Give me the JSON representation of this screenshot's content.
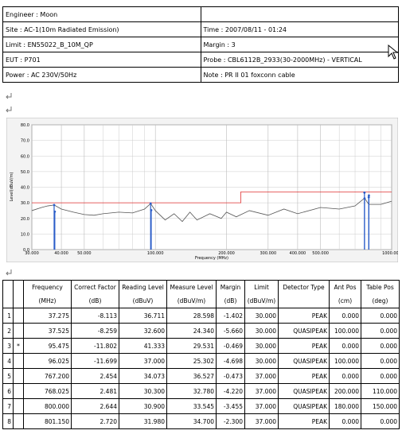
{
  "info_table": {
    "rows": [
      [
        "Engineer : Moon",
        null
      ],
      [
        "Site : AC-1(10m Radiated Emission)",
        "Time : 2007/08/11 - 01:24"
      ],
      [
        "Limit : EN55022_B_10M_QP",
        "Margin : 3"
      ],
      [
        "EUT : P701",
        "Probe : CBL6112B_2933(30-2000MHz) - VERTICAL"
      ],
      [
        "Power : AC 230V/50Hz",
        "Note : PR II 01  foxconn cable"
      ]
    ]
  },
  "chart": {
    "type": "line",
    "ylabel": "Level(dBuV/m)",
    "xlabel": "Frequency (MHz)",
    "xscale": "log",
    "xlim": [
      30,
      1000
    ],
    "ylim": [
      0,
      80
    ],
    "yticks": [
      {
        "value": 0,
        "label": "0.0"
      },
      {
        "value": 10,
        "label": "10.0"
      },
      {
        "value": 20,
        "label": "20.0"
      },
      {
        "value": 30,
        "label": "30.0"
      },
      {
        "value": 40,
        "label": "40.0"
      },
      {
        "value": 50,
        "label": "50.0"
      },
      {
        "value": 60,
        "label": "60.0"
      },
      {
        "value": 70,
        "label": "70.0"
      },
      {
        "value": 80,
        "label": "80.0"
      }
    ],
    "xticks": [
      {
        "value": 30,
        "label": "30.000"
      },
      {
        "value": 40,
        "label": "40.000"
      },
      {
        "value": 50,
        "label": "50.000"
      },
      {
        "value": 100,
        "label": "100.000"
      },
      {
        "value": 200,
        "label": "200.000"
      },
      {
        "value": 300,
        "label": "300.000"
      },
      {
        "value": 400,
        "label": "400.000"
      },
      {
        "value": 500,
        "label": "500.000"
      },
      {
        "value": 1000,
        "label": "1000.000"
      }
    ],
    "x_minor_grid": [
      60,
      70,
      80,
      90,
      600,
      700,
      800,
      900
    ],
    "grid": true,
    "series": [
      {
        "color": "#555555",
        "x": [
          30,
          33,
          35,
          37.3,
          40,
          45,
          50,
          55,
          60,
          70,
          80,
          90,
          95.5,
          100,
          110,
          120,
          130,
          140,
          150,
          170,
          190,
          200,
          220,
          250,
          300,
          350,
          400,
          500,
          600,
          700,
          768,
          800,
          900,
          1000
        ],
        "values": [
          25,
          27,
          28,
          28.6,
          26,
          24,
          22.5,
          22,
          23,
          24,
          23.5,
          26,
          29.5,
          25,
          19,
          23,
          18,
          24,
          19,
          23,
          20,
          24,
          21,
          25,
          22,
          26,
          23,
          27,
          26,
          28,
          33,
          29,
          29,
          31
        ]
      },
      {
        "color": "#e03030",
        "x": [
          30,
          230,
          230,
          1000
        ],
        "values": [
          30,
          30,
          37,
          37
        ]
      }
    ],
    "peaks": {
      "color": "#2a5cc8",
      "x": [
        37.275,
        37.525,
        95.475,
        96.025,
        767.2,
        768.025,
        800,
        801.15
      ],
      "values": [
        28.598,
        24.34,
        29.531,
        25.302,
        36.527,
        32.78,
        33.545,
        34.7
      ]
    }
  },
  "data_table": {
    "header": [
      [
        null,
        null,
        "Frequency",
        "Correct Factor",
        "Reading Level",
        "Measure Level",
        "Margin",
        "Limit",
        "Detector Type",
        "Ant Pos",
        "Table Pos"
      ],
      [
        null,
        null,
        "(MHz)",
        "(dB)",
        "(dBuV)",
        "(dBuV/m)",
        "(dB)",
        "(dBuV/m)",
        null,
        "(cm)",
        "(deg)"
      ]
    ],
    "rows": [
      [
        "1",
        null,
        "37.275",
        "-8.113",
        "36.711",
        "28.598",
        "-1.402",
        "30.000",
        "PEAK",
        "0.000",
        "0.000"
      ],
      [
        "2",
        null,
        "37.525",
        "-8.259",
        "32.600",
        "24.340",
        "-5.660",
        "30.000",
        "QUASIPEAK",
        "100.000",
        "0.000"
      ],
      [
        "3",
        "*",
        "95.475",
        "-11.802",
        "41.333",
        "29.531",
        "-0.469",
        "30.000",
        "PEAK",
        "0.000",
        "0.000"
      ],
      [
        "4",
        null,
        "96.025",
        "-11.699",
        "37.000",
        "25.302",
        "-4.698",
        "30.000",
        "QUASIPEAK",
        "100.000",
        "0.000"
      ],
      [
        "5",
        null,
        "767.200",
        "2.454",
        "34.073",
        "36.527",
        "-0.473",
        "37.000",
        "PEAK",
        "0.000",
        "0.000"
      ],
      [
        "6",
        null,
        "768.025",
        "2.481",
        "30.300",
        "32.780",
        "-4.220",
        "37.000",
        "QUASIPEAK",
        "200.000",
        "110.000"
      ],
      [
        "7",
        null,
        "800.000",
        "2.644",
        "30.900",
        "33.545",
        "-3.455",
        "37.000",
        "QUASIPEAK",
        "180.000",
        "150.000"
      ],
      [
        "8",
        null,
        "801.150",
        "2.720",
        "31.980",
        "34.700",
        "-2.300",
        "37.000",
        "PEAK",
        "0.000",
        "0.000"
      ]
    ]
  }
}
